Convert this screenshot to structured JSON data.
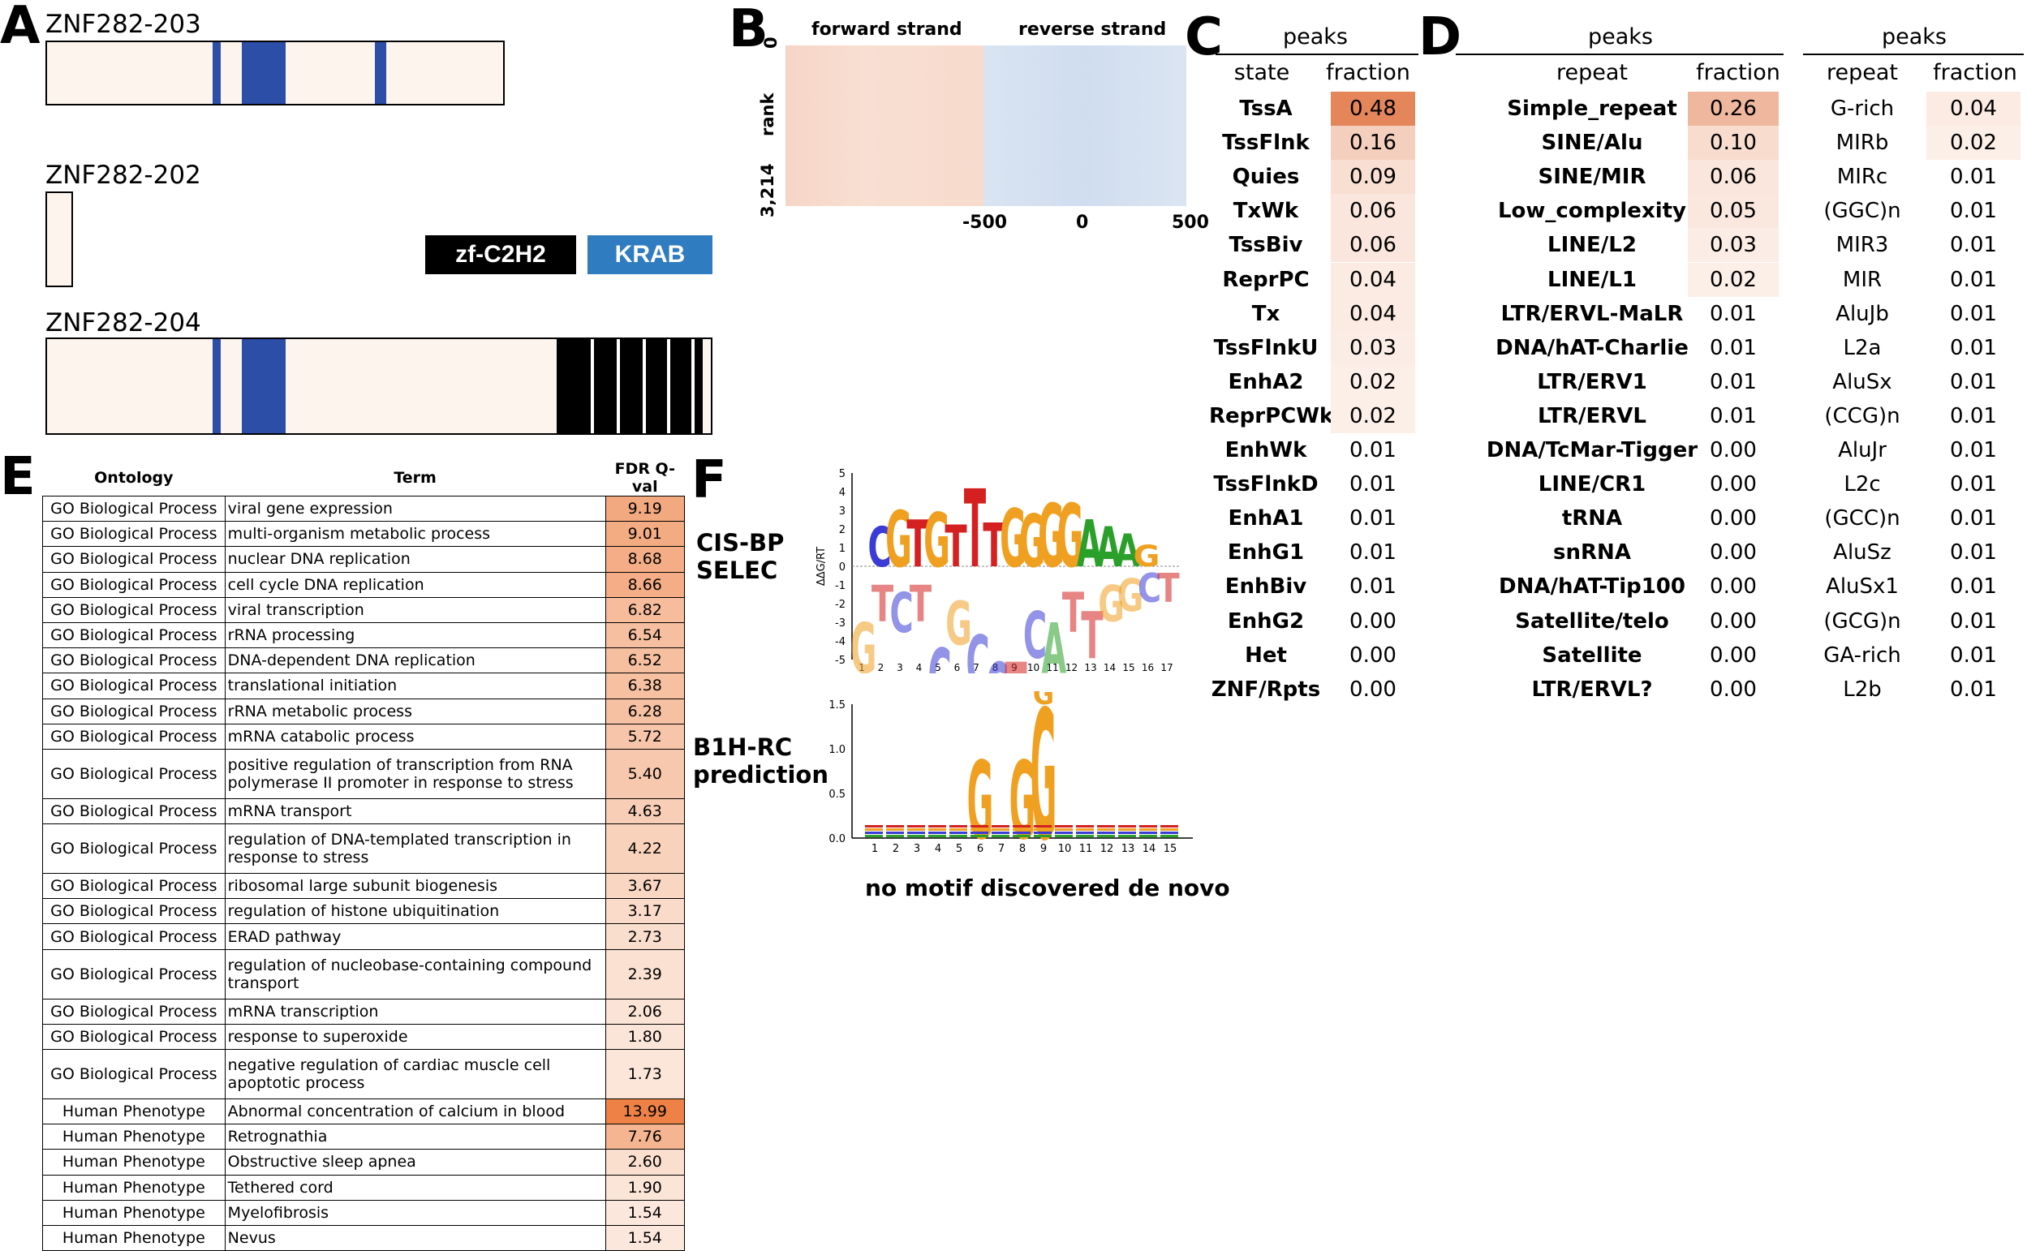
{
  "panels": {
    "A": "A",
    "B": "B",
    "C": "C",
    "D": "D",
    "E": "E",
    "F": "F"
  },
  "colors": {
    "domain_krab": "#2d4ea7",
    "domain_zf": "#000000",
    "legend_krab": "#2f7cc0",
    "protein_fill": "#fdf4ee",
    "heat_max": "#e4855a"
  },
  "panelA": {
    "isoforms": [
      "ZNF282-203",
      "ZNF282-202",
      "ZNF282-204"
    ],
    "legend": {
      "zf": "zf-C2H2",
      "krab": "KRAB"
    }
  },
  "panelB": {
    "forward": "forward strand",
    "reverse": "reverse strand",
    "y_top": "0",
    "y_label": "rank",
    "y_bottom": "3,214",
    "x_ticks": [
      "-500",
      "0",
      "500"
    ]
  },
  "panelC": {
    "peaks": "peaks",
    "col_state": "state",
    "col_fraction": "fraction",
    "rows": [
      {
        "state": "TssA",
        "fraction": "0.48"
      },
      {
        "state": "TssFlnk",
        "fraction": "0.16"
      },
      {
        "state": "Quies",
        "fraction": "0.09"
      },
      {
        "state": "TxWk",
        "fraction": "0.06"
      },
      {
        "state": "TssBiv",
        "fraction": "0.06"
      },
      {
        "state": "ReprPC",
        "fraction": "0.04"
      },
      {
        "state": "Tx",
        "fraction": "0.04"
      },
      {
        "state": "TssFlnkU",
        "fraction": "0.03"
      },
      {
        "state": "EnhA2",
        "fraction": "0.02"
      },
      {
        "state": "ReprPCWk",
        "fraction": "0.02"
      },
      {
        "state": "EnhWk",
        "fraction": "0.01"
      },
      {
        "state": "TssFlnkD",
        "fraction": "0.01"
      },
      {
        "state": "EnhA1",
        "fraction": "0.01"
      },
      {
        "state": "EnhG1",
        "fraction": "0.01"
      },
      {
        "state": "EnhBiv",
        "fraction": "0.01"
      },
      {
        "state": "EnhG2",
        "fraction": "0.00"
      },
      {
        "state": "Het",
        "fraction": "0.00"
      },
      {
        "state": "ZNF/Rpts",
        "fraction": "0.00"
      }
    ]
  },
  "panelD": {
    "peaks": "peaks",
    "col_repeat": "repeat",
    "col_fraction": "fraction",
    "left": [
      {
        "repeat": "Simple_repeat",
        "fraction": "0.26"
      },
      {
        "repeat": "SINE/Alu",
        "fraction": "0.10"
      },
      {
        "repeat": "SINE/MIR",
        "fraction": "0.06"
      },
      {
        "repeat": "Low_complexity",
        "fraction": "0.05"
      },
      {
        "repeat": "LINE/L2",
        "fraction": "0.03"
      },
      {
        "repeat": "LINE/L1",
        "fraction": "0.02"
      },
      {
        "repeat": "LTR/ERVL-MaLR",
        "fraction": "0.01"
      },
      {
        "repeat": "DNA/hAT-Charlie",
        "fraction": "0.01"
      },
      {
        "repeat": "LTR/ERV1",
        "fraction": "0.01"
      },
      {
        "repeat": "LTR/ERVL",
        "fraction": "0.01"
      },
      {
        "repeat": "DNA/TcMar-Tigger",
        "fraction": "0.00"
      },
      {
        "repeat": "LINE/CR1",
        "fraction": "0.00"
      },
      {
        "repeat": "tRNA",
        "fraction": "0.00"
      },
      {
        "repeat": "snRNA",
        "fraction": "0.00"
      },
      {
        "repeat": "DNA/hAT-Tip100",
        "fraction": "0.00"
      },
      {
        "repeat": "Satellite/telo",
        "fraction": "0.00"
      },
      {
        "repeat": "Satellite",
        "fraction": "0.00"
      },
      {
        "repeat": "LTR/ERVL?",
        "fraction": "0.00"
      }
    ],
    "right": [
      {
        "repeat": "G-rich",
        "fraction": "0.04"
      },
      {
        "repeat": "MIRb",
        "fraction": "0.02"
      },
      {
        "repeat": "MIRc",
        "fraction": "0.01"
      },
      {
        "repeat": "(GGC)n",
        "fraction": "0.01"
      },
      {
        "repeat": "MIR3",
        "fraction": "0.01"
      },
      {
        "repeat": "MIR",
        "fraction": "0.01"
      },
      {
        "repeat": "AluJb",
        "fraction": "0.01"
      },
      {
        "repeat": "L2a",
        "fraction": "0.01"
      },
      {
        "repeat": "AluSx",
        "fraction": "0.01"
      },
      {
        "repeat": "(CCG)n",
        "fraction": "0.01"
      },
      {
        "repeat": "AluJr",
        "fraction": "0.01"
      },
      {
        "repeat": "L2c",
        "fraction": "0.01"
      },
      {
        "repeat": "(GCC)n",
        "fraction": "0.01"
      },
      {
        "repeat": "AluSz",
        "fraction": "0.01"
      },
      {
        "repeat": "AluSx1",
        "fraction": "0.01"
      },
      {
        "repeat": "(GCG)n",
        "fraction": "0.01"
      },
      {
        "repeat": "GA-rich",
        "fraction": "0.01"
      },
      {
        "repeat": "L2b",
        "fraction": "0.01"
      }
    ]
  },
  "panelE": {
    "headers": {
      "ontology": "Ontology",
      "term": "Term",
      "q": "FDR Q-val"
    },
    "rows": [
      {
        "ontology": "GO Biological Process",
        "term": "viral gene expression",
        "q": "9.19"
      },
      {
        "ontology": "GO Biological Process",
        "term": "multi-organism metabolic process",
        "q": "9.01"
      },
      {
        "ontology": "GO Biological Process",
        "term": "nuclear DNA replication",
        "q": "8.68"
      },
      {
        "ontology": "GO Biological Process",
        "term": "cell cycle DNA replication",
        "q": "8.66"
      },
      {
        "ontology": "GO Biological Process",
        "term": "viral transcription",
        "q": "6.82"
      },
      {
        "ontology": "GO Biological Process",
        "term": "rRNA processing",
        "q": "6.54"
      },
      {
        "ontology": "GO Biological Process",
        "term": "DNA-dependent DNA replication",
        "q": "6.52"
      },
      {
        "ontology": "GO Biological Process",
        "term": "translational initiation",
        "q": "6.38"
      },
      {
        "ontology": "GO Biological Process",
        "term": "rRNA metabolic process",
        "q": "6.28"
      },
      {
        "ontology": "GO Biological Process",
        "term": "mRNA catabolic process",
        "q": "5.72"
      },
      {
        "ontology": "GO Biological Process",
        "term": "positive regulation of transcription from RNA polymerase II promoter in response to stress",
        "q": "5.40"
      },
      {
        "ontology": "GO Biological Process",
        "term": "mRNA transport",
        "q": "4.63"
      },
      {
        "ontology": "GO Biological Process",
        "term": "regulation of DNA-templated transcription in response to stress",
        "q": "4.22"
      },
      {
        "ontology": "GO Biological Process",
        "term": "ribosomal large subunit biogenesis",
        "q": "3.67"
      },
      {
        "ontology": "GO Biological Process",
        "term": "regulation of histone ubiquitination",
        "q": "3.17"
      },
      {
        "ontology": "GO Biological Process",
        "term": "ERAD pathway",
        "q": "2.73"
      },
      {
        "ontology": "GO Biological Process",
        "term": "regulation of nucleobase-containing compound transport",
        "q": "2.39"
      },
      {
        "ontology": "GO Biological Process",
        "term": "mRNA transcription",
        "q": "2.06"
      },
      {
        "ontology": "GO Biological Process",
        "term": "response to superoxide",
        "q": "1.80"
      },
      {
        "ontology": "GO Biological Process",
        "term": "negative regulation of cardiac muscle cell apoptotic process",
        "q": "1.73"
      },
      {
        "ontology": "Human Phenotype",
        "term": "Abnormal concentration of calcium in blood",
        "q": "13.99"
      },
      {
        "ontology": "Human Phenotype",
        "term": "Retrognathia",
        "q": "7.76"
      },
      {
        "ontology": "Human Phenotype",
        "term": "Obstructive sleep apnea",
        "q": "2.60"
      },
      {
        "ontology": "Human Phenotype",
        "term": "Tethered cord",
        "q": "1.90"
      },
      {
        "ontology": "Human Phenotype",
        "term": "Myelofibrosis",
        "q": "1.54"
      },
      {
        "ontology": "Human Phenotype",
        "term": "Nevus",
        "q": "1.54"
      }
    ]
  },
  "panelF": {
    "label1a": "CIS-BP",
    "label1b": "SELEC",
    "label2a": "B1H-RC",
    "label2b": "prediction",
    "logo1_ylabel": "ΔΔG/RT",
    "logo1_yticks": [
      "5",
      "4",
      "3",
      "2",
      "1",
      "0",
      "-1",
      "-2",
      "-3",
      "-4",
      "-5"
    ],
    "logo1_xticks": [
      "1",
      "2",
      "3",
      "4",
      "5",
      "6",
      "7",
      "8",
      "9",
      "10",
      "11",
      "12",
      "13",
      "14",
      "15",
      "16",
      "17"
    ],
    "logo1_top": "CGTGTTTGGGGAAAG",
    "logo1_bottom": "GTCTCGCCTCATTGGCT",
    "logo2_yticks": [
      "1.5",
      "1.0",
      "0.5",
      "0.0"
    ],
    "logo2_xticks": [
      "1",
      "2",
      "3",
      "4",
      "5",
      "6",
      "7",
      "8",
      "9",
      "10",
      "11",
      "12",
      "13",
      "14",
      "15"
    ],
    "logo2_big": [
      "G",
      "G",
      "G",
      "G"
    ],
    "note": "no motif discovered de novo"
  }
}
